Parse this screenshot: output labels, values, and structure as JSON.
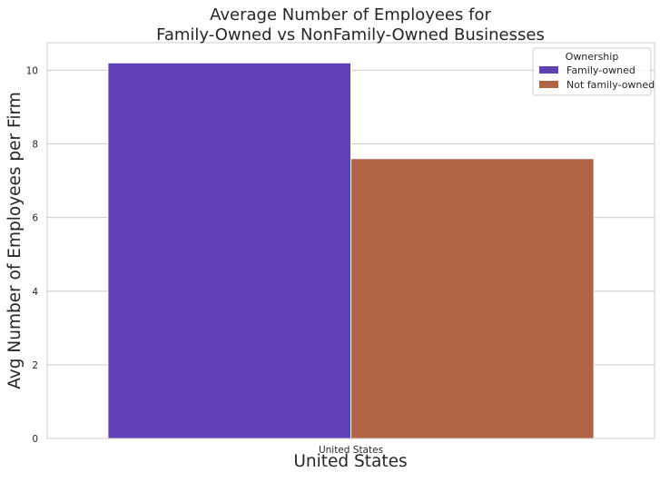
{
  "chart_data": {
    "type": "bar",
    "title": [
      "Average Number of Employees for",
      "Family-Owned vs NonFamily-Owned Businesses"
    ],
    "xlabel": "United States",
    "ylabel": "Avg Number of Employees per Firm",
    "categories": [
      "United States"
    ],
    "series": [
      {
        "name": "Family-owned",
        "values": [
          10.2
        ],
        "color": "#6040b4"
      },
      {
        "name": "Not family-owned",
        "values": [
          7.6
        ],
        "color": "#b06443"
      }
    ],
    "ylim": [
      0,
      10.75
    ],
    "yticks": [
      0,
      2,
      4,
      6,
      8,
      10
    ],
    "legend": {
      "title": "Ownership",
      "placement": "top-right"
    },
    "grid": "y"
  }
}
